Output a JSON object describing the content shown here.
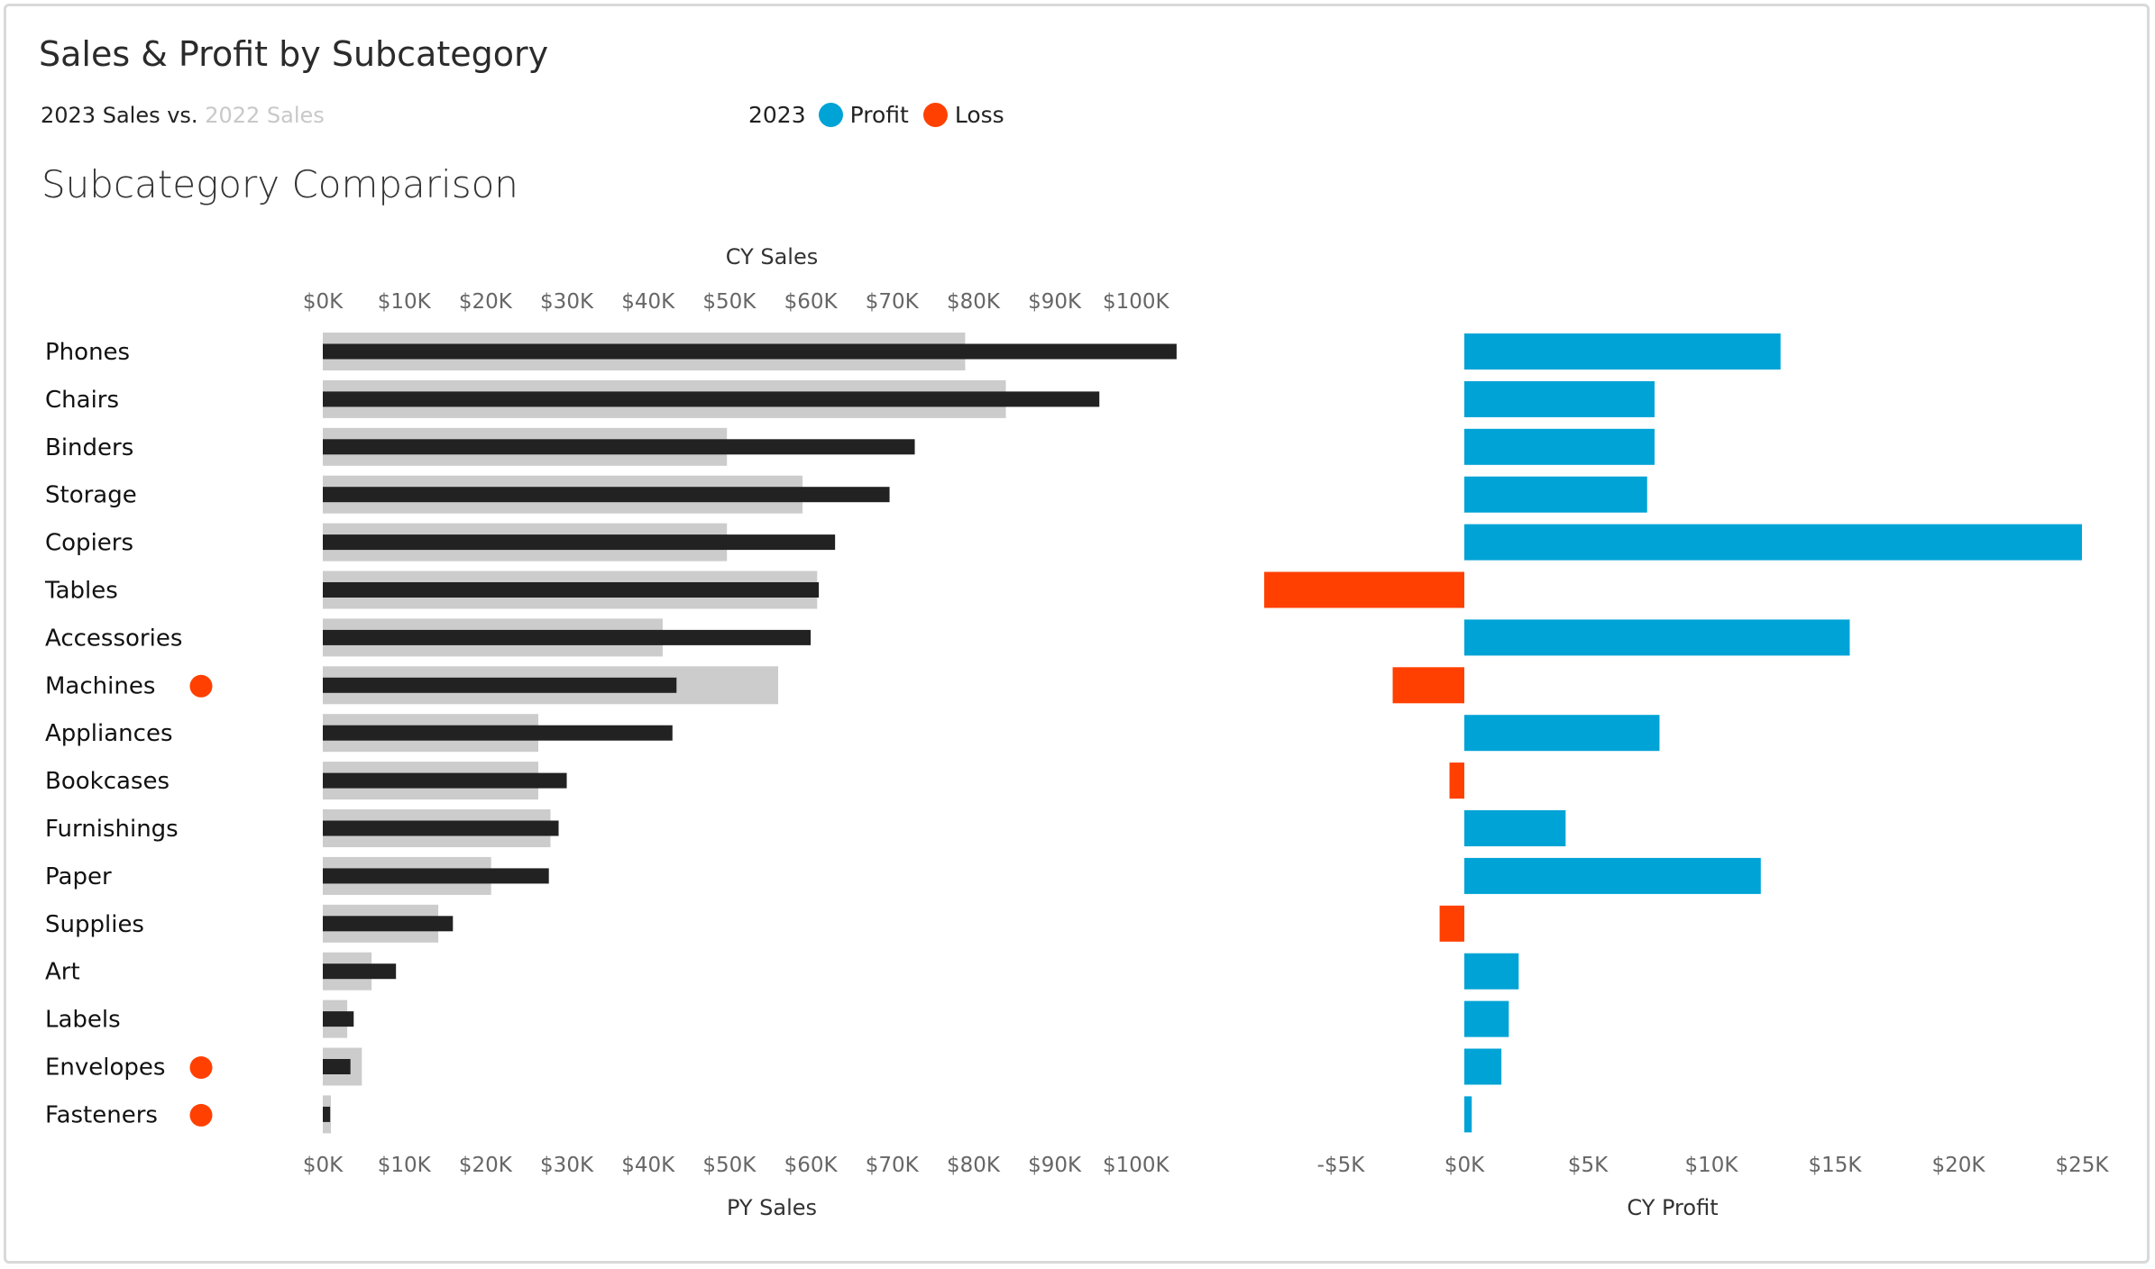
{
  "header": {
    "title": "Sales & Profit by Subcategory",
    "subtitle_cy": "2023 Sales vs.",
    "subtitle_py": "2022 Sales",
    "legend_year": "2023",
    "legend_profit": "Profit",
    "legend_loss": "Loss",
    "section_title": "Subcategory Comparison"
  },
  "colors": {
    "cy_sales": "#222222",
    "py_sales": "#cccccc",
    "profit": "#00a3d6",
    "loss": "#ff4000",
    "indicator": "#ff4000"
  },
  "chart_data": {
    "type": "bar",
    "orientation": "horizontal",
    "categories": [
      "Phones",
      "Chairs",
      "Binders",
      "Storage",
      "Copiers",
      "Tables",
      "Accessories",
      "Machines",
      "Appliances",
      "Bookcases",
      "Furnishings",
      "Paper",
      "Supplies",
      "Art",
      "Labels",
      "Envelopes",
      "Fasteners"
    ],
    "series": [
      {
        "name": "2023 Sales",
        "values": [
          105000,
          95500,
          72800,
          69700,
          63000,
          61000,
          60000,
          43500,
          43000,
          30000,
          29000,
          27800,
          16000,
          9000,
          3800,
          3400,
          900
        ]
      },
      {
        "name": "2022 Sales",
        "values": [
          79000,
          84000,
          49700,
          59000,
          49700,
          60800,
          41800,
          56000,
          26500,
          26500,
          28000,
          20700,
          14200,
          6000,
          3000,
          4800,
          1000
        ]
      }
    ],
    "profit": {
      "xlabel": "CY Profit",
      "values": [
        12800,
        7700,
        7700,
        7400,
        25000,
        -8100,
        15600,
        -2900,
        7900,
        -600,
        4100,
        12000,
        -1000,
        2200,
        1800,
        1500,
        300
      ],
      "xlim": [
        -8500,
        26000
      ],
      "ticks": [
        "-$5K",
        "$0K",
        "$5K",
        "$10K",
        "$15K",
        "$20K",
        "$25K"
      ],
      "tick_values": [
        -5000,
        0,
        5000,
        10000,
        15000,
        20000,
        25000
      ]
    },
    "sales_axis": {
      "top_label": "CY Sales",
      "bottom_label": "PY Sales",
      "xlim": [
        0,
        110000
      ],
      "ticks": [
        "$0K",
        "$10K",
        "$20K",
        "$30K",
        "$40K",
        "$50K",
        "$60K",
        "$70K",
        "$80K",
        "$90K",
        "$100K"
      ],
      "tick_values": [
        0,
        10000,
        20000,
        30000,
        40000,
        50000,
        60000,
        70000,
        80000,
        90000,
        100000
      ]
    },
    "loss_indicator": [
      false,
      false,
      false,
      false,
      false,
      false,
      false,
      true,
      false,
      false,
      false,
      false,
      false,
      false,
      false,
      true,
      true
    ]
  }
}
